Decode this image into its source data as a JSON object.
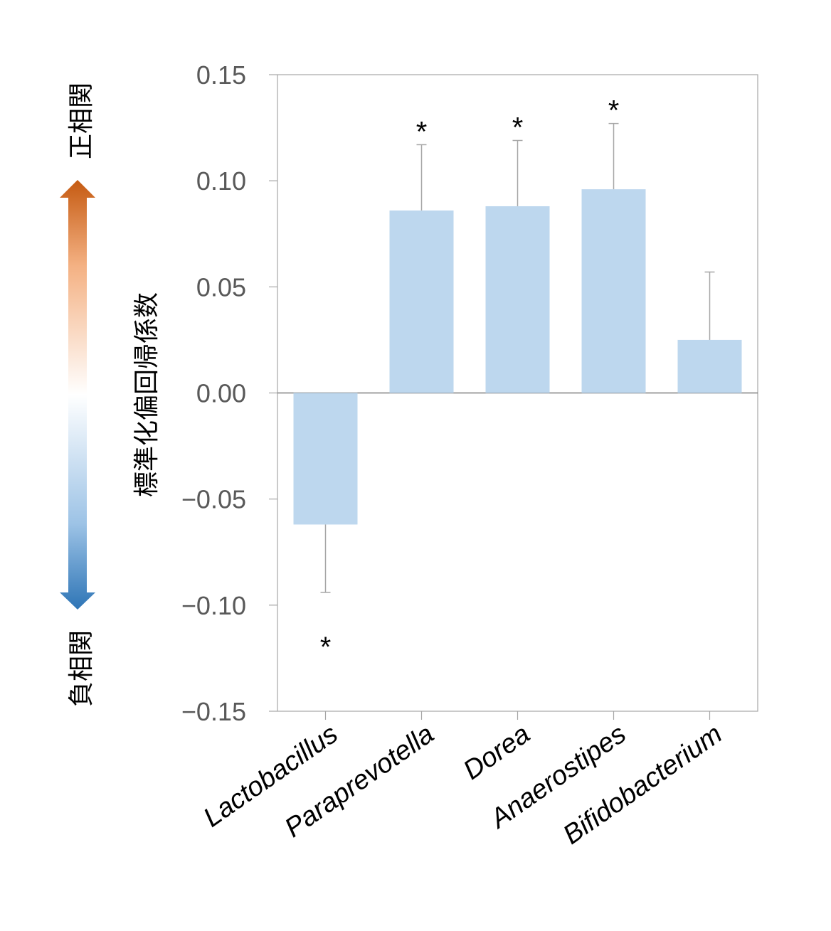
{
  "chart_data": {
    "type": "bar",
    "ylabel": "標準化偏回帰係数",
    "categories": [
      "Lactobacillus",
      "Paraprevotella",
      "Dorea",
      "Anaerostipes",
      "Bifidobacterium"
    ],
    "values": [
      -0.062,
      0.086,
      0.088,
      0.096,
      0.025
    ],
    "error_upper": [
      -0.094,
      0.117,
      0.119,
      0.127,
      0.057
    ],
    "significance": [
      "*",
      "*",
      "*",
      "*",
      ""
    ],
    "ylim": [
      -0.15,
      0.15
    ],
    "yticks": [
      "0.15",
      "0.10",
      "0.05",
      "0.00",
      "−0.05",
      "−0.10",
      "−0.15"
    ],
    "ytick_values": [
      0.15,
      0.1,
      0.05,
      0.0,
      -0.05,
      -0.1,
      -0.15
    ],
    "grid": false,
    "bar_color": "#bdd7ee",
    "error_color": "#a6a6a6",
    "arrow": {
      "top_label": "正相関",
      "bottom_label": "負相関",
      "top_color": "#c55a11",
      "bottom_color": "#2e75b6"
    }
  }
}
